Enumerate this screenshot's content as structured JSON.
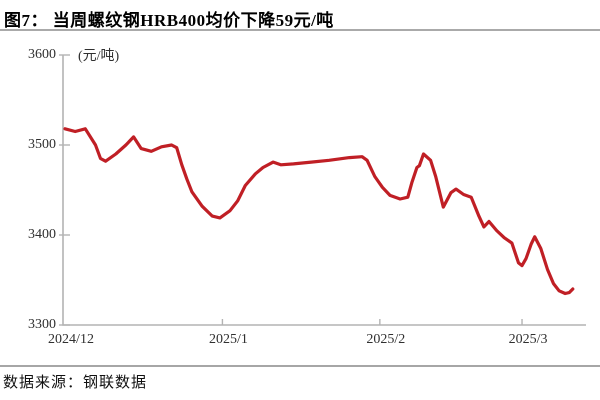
{
  "header": {
    "title": "图7： 当周螺纹钢HRB400均价下降59元/吨"
  },
  "footer": {
    "source": "数据来源：钢联数据"
  },
  "chart_data": {
    "type": "line",
    "title": "当周螺纹钢HRB400均价下降59元/吨",
    "unit_label": "(元/吨)",
    "ylim": [
      3300,
      3600
    ],
    "y_ticks": [
      3600,
      3500,
      3400,
      3300
    ],
    "x_ticks": [
      {
        "label": "2024/12",
        "day": 0
      },
      {
        "label": "2025/1",
        "day": 31
      },
      {
        "label": "2025/2",
        "day": 62
      },
      {
        "label": "2025/3",
        "day": 90
      }
    ],
    "x_range_days": [
      0,
      100
    ],
    "grid": false,
    "legend_position": "none",
    "line_color": "#c01f25",
    "axis_color": "#b3b3b3",
    "series": [
      {
        "name": "螺纹钢HRB400均价(元/吨)",
        "points": [
          [
            0,
            3518
          ],
          [
            2,
            3515
          ],
          [
            4,
            3518
          ],
          [
            6,
            3500
          ],
          [
            7,
            3485
          ],
          [
            8,
            3482
          ],
          [
            10,
            3490
          ],
          [
            12,
            3500
          ],
          [
            13.5,
            3509
          ],
          [
            15,
            3496
          ],
          [
            17,
            3493
          ],
          [
            19,
            3498
          ],
          [
            21,
            3500
          ],
          [
            22,
            3497
          ],
          [
            23,
            3478
          ],
          [
            24,
            3462
          ],
          [
            25,
            3448
          ],
          [
            27,
            3432
          ],
          [
            29,
            3421
          ],
          [
            30.5,
            3419
          ],
          [
            32.5,
            3427
          ],
          [
            34,
            3438
          ],
          [
            35.5,
            3455
          ],
          [
            37.5,
            3468
          ],
          [
            39,
            3475
          ],
          [
            41,
            3481
          ],
          [
            42.5,
            3478
          ],
          [
            45,
            3479
          ],
          [
            48.5,
            3481
          ],
          [
            52,
            3483
          ],
          [
            56,
            3486
          ],
          [
            58.5,
            3487
          ],
          [
            59.5,
            3483
          ],
          [
            61,
            3465
          ],
          [
            62.5,
            3453
          ],
          [
            64,
            3444
          ],
          [
            66,
            3440
          ],
          [
            67.5,
            3442
          ],
          [
            68.3,
            3458
          ],
          [
            69.3,
            3475
          ],
          [
            69.8,
            3477
          ],
          [
            70.6,
            3490
          ],
          [
            72,
            3483
          ],
          [
            73,
            3465
          ],
          [
            74.5,
            3431
          ],
          [
            76,
            3447
          ],
          [
            77,
            3451
          ],
          [
            78.5,
            3445
          ],
          [
            80,
            3442
          ],
          [
            81.5,
            3421
          ],
          [
            82.5,
            3409
          ],
          [
            83.5,
            3415
          ],
          [
            85,
            3405
          ],
          [
            86.5,
            3397
          ],
          [
            88,
            3391
          ],
          [
            89.3,
            3369
          ],
          [
            90,
            3366
          ],
          [
            90.8,
            3374
          ],
          [
            91.8,
            3390
          ],
          [
            92.5,
            3398
          ],
          [
            93.7,
            3385
          ],
          [
            95,
            3362
          ],
          [
            96.2,
            3346
          ],
          [
            97.3,
            3338
          ],
          [
            98.5,
            3335
          ],
          [
            99.3,
            3336
          ],
          [
            100,
            3340
          ]
        ]
      }
    ]
  }
}
